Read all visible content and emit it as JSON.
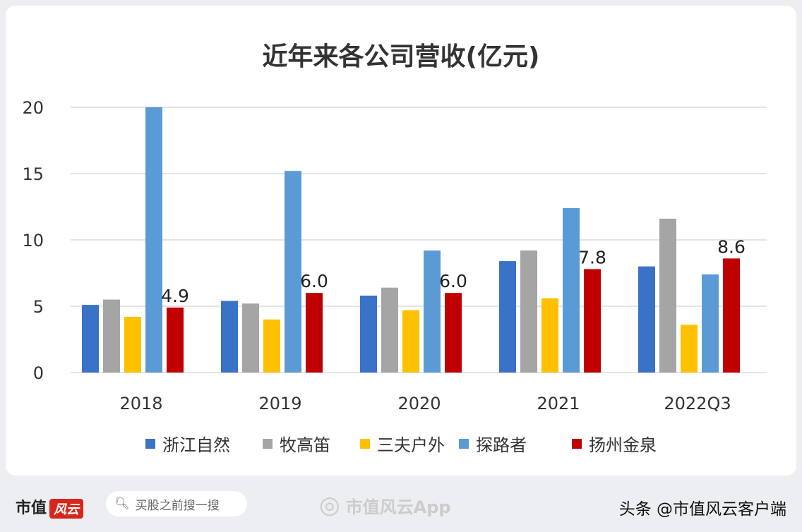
{
  "chart_data": {
    "type": "bar",
    "title": "近年来各公司营收(亿元)",
    "categories": [
      "2018",
      "2019",
      "2020",
      "2021",
      "2022Q3"
    ],
    "series": [
      {
        "name": "浙江自然",
        "color": "#3a72c8",
        "values": [
          5.1,
          5.4,
          5.8,
          8.4,
          8.0
        ]
      },
      {
        "name": "牧高笛",
        "color": "#a5a5a5",
        "values": [
          5.5,
          5.2,
          6.4,
          9.2,
          11.6
        ]
      },
      {
        "name": "三夫户外",
        "color": "#ffc000",
        "values": [
          4.2,
          4.0,
          4.7,
          5.6,
          3.6
        ]
      },
      {
        "name": "探路者",
        "color": "#5b9bd5",
        "values": [
          20.0,
          15.2,
          9.2,
          12.4,
          7.4
        ]
      },
      {
        "name": "扬州金泉",
        "color": "#c00000",
        "values": [
          4.9,
          6.0,
          6.0,
          7.8,
          8.6
        ]
      }
    ],
    "data_labels": {
      "series": "扬州金泉",
      "labels": [
        "4.9",
        "6.0",
        "6.0",
        "7.8",
        "8.6"
      ]
    },
    "ylim": [
      0,
      20
    ],
    "yticks": [
      "0",
      "5",
      "10",
      "15",
      "20"
    ],
    "grid": true,
    "legend": "bottom"
  },
  "footer": {
    "brand": "市值",
    "brand_logo": "风云",
    "search_placeholder": "买股之前搜一搜",
    "weibo": "市值风云App",
    "source": "头条 @市值风云客户端"
  }
}
